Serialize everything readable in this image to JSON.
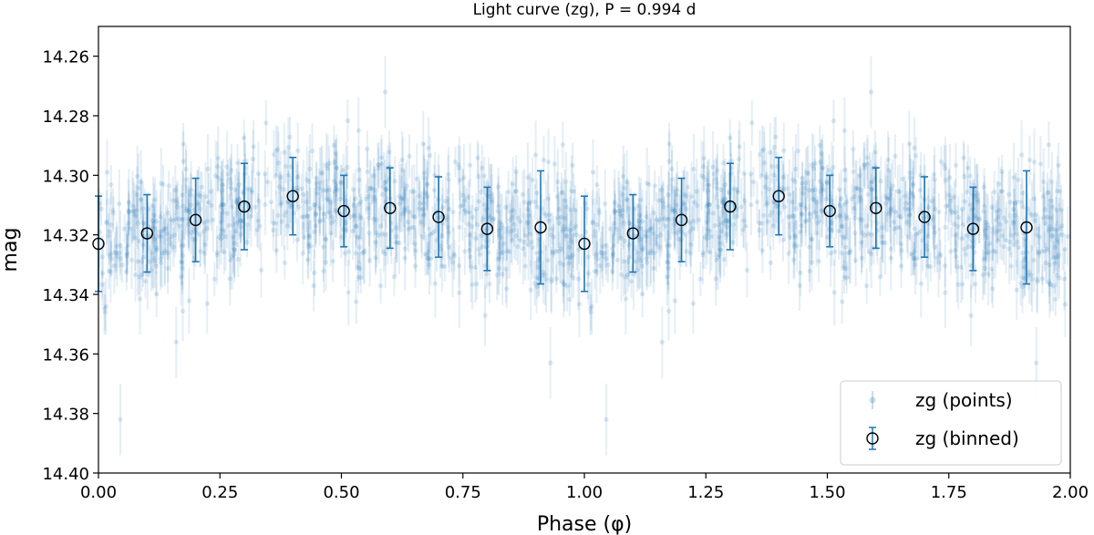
{
  "chart_data": {
    "type": "scatter",
    "title": "Light curve (zg), P = 0.994 d",
    "xlabel": "Phase (φ)",
    "ylabel": "mag",
    "xlim": [
      0.0,
      2.0
    ],
    "ylim": [
      14.4,
      14.25
    ],
    "y_inverted": true,
    "x_ticks": [
      "0.00",
      "0.25",
      "0.50",
      "0.75",
      "1.00",
      "1.25",
      "1.50",
      "1.75",
      "2.00"
    ],
    "y_ticks": [
      "14.26",
      "14.28",
      "14.30",
      "14.32",
      "14.34",
      "14.36",
      "14.38",
      "14.40"
    ],
    "grid": false,
    "legend": {
      "placement": "lower-right",
      "entries": [
        "zg (points)",
        "zg (binned)"
      ]
    },
    "colors": {
      "points": "#1f77b4",
      "binned_edge": "#000000",
      "binned_err": "#1f77b4"
    },
    "series": [
      {
        "name": "zg (points)",
        "style": "faint points with error bars",
        "summary_model": {
          "mean_mag": 14.317,
          "point_scatter": 0.011,
          "typical_err": 0.008
        },
        "outliers": [
          {
            "x": 0.045,
            "y": 14.382
          },
          {
            "x": 1.045,
            "y": 14.382
          },
          {
            "x": 0.59,
            "y": 14.272
          },
          {
            "x": 1.59,
            "y": 14.272
          },
          {
            "x": 0.16,
            "y": 14.356
          },
          {
            "x": 1.16,
            "y": 14.356
          },
          {
            "x": 0.93,
            "y": 14.363
          },
          {
            "x": 1.93,
            "y": 14.363
          }
        ]
      },
      {
        "name": "zg (binned)",
        "style": "open circles with error bars",
        "x": [
          0.0,
          0.1,
          0.2,
          0.3,
          0.4,
          0.505,
          0.6,
          0.7,
          0.8,
          0.91,
          1.0,
          1.1,
          1.2,
          1.3,
          1.4,
          1.505,
          1.6,
          1.7,
          1.8,
          1.91
        ],
        "y": [
          14.323,
          14.3195,
          14.315,
          14.3105,
          14.307,
          14.312,
          14.311,
          14.314,
          14.318,
          14.3175,
          14.323,
          14.3195,
          14.315,
          14.3105,
          14.307,
          14.312,
          14.311,
          14.314,
          14.318,
          14.3175
        ],
        "yerr": [
          0.016,
          0.013,
          0.014,
          0.0145,
          0.013,
          0.012,
          0.0135,
          0.0135,
          0.014,
          0.019,
          0.016,
          0.013,
          0.014,
          0.0145,
          0.013,
          0.012,
          0.0135,
          0.0135,
          0.014,
          0.019
        ]
      }
    ]
  }
}
